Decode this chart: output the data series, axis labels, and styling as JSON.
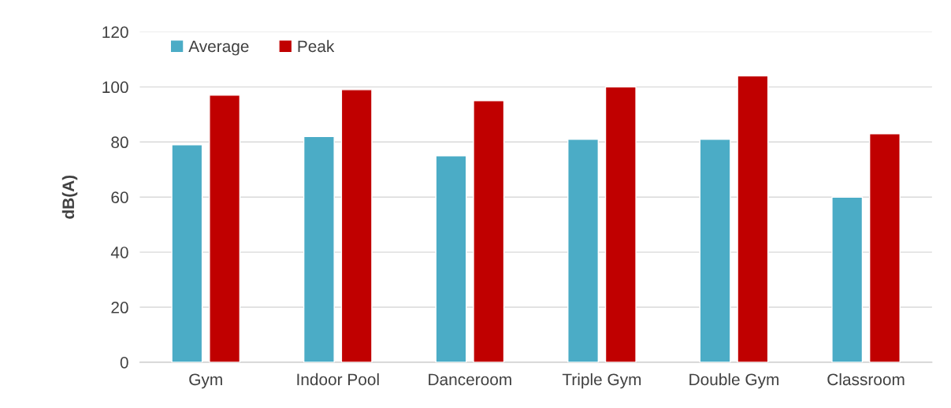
{
  "chart_data": {
    "type": "bar",
    "ylabel": "dB(A)",
    "categories": [
      "Gym",
      "Indoor Pool",
      "Danceroom",
      "Triple Gym",
      "Double Gym",
      "Classroom"
    ],
    "series": [
      {
        "name": "Average",
        "color": "#4bacc6",
        "values": [
          79,
          82,
          75,
          81,
          81,
          60
        ]
      },
      {
        "name": "Peak",
        "color": "#c00000",
        "values": [
          97,
          99,
          95,
          100,
          104,
          83
        ]
      }
    ],
    "ylim": [
      0,
      120
    ],
    "yticks": [
      0,
      20,
      40,
      60,
      80,
      100,
      120
    ],
    "grid": "y",
    "legend": "top left"
  }
}
